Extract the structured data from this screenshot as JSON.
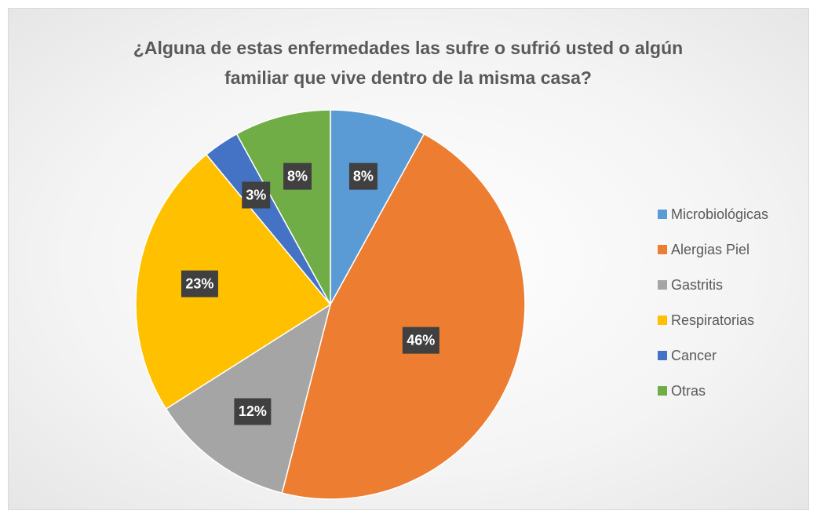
{
  "chart_data": {
    "type": "pie",
    "title": "¿Alguna de estas enfermedades las sufre o sufrió usted o algún familiar que vive dentro de la misma casa?",
    "categories": [
      "Microbiológicas",
      "Alergias Piel",
      "Gastritis",
      "Respiratorias",
      "Cancer",
      "Otras"
    ],
    "values": [
      8,
      46,
      12,
      23,
      3,
      8
    ],
    "value_labels": [
      "8%",
      "46%",
      "12%",
      "23%",
      "3%",
      "8%"
    ],
    "colors": [
      "#5b9bd5",
      "#ed7d31",
      "#a5a5a5",
      "#ffc000",
      "#4472c4",
      "#70ad47"
    ],
    "legend": "right"
  }
}
